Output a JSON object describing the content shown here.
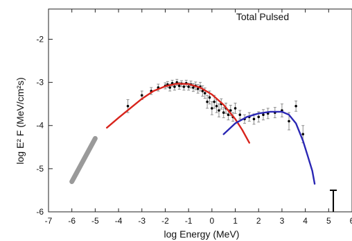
{
  "chart_data": {
    "type": "scatter",
    "title": "Total Pulsed",
    "xlabel": "log Energy (MeV)",
    "ylabel": "log E² F (MeV/cm²s)",
    "xlim": [
      -7,
      6
    ],
    "ylim": [
      -6,
      -1.3
    ],
    "x_ticks": [
      "-7",
      "-6",
      "-5",
      "-4",
      "-3",
      "-2",
      "-1",
      "0",
      "1",
      "2",
      "3",
      "4",
      "5",
      "6"
    ],
    "y_ticks": [
      {
        "v": -2,
        "label": "-2"
      },
      {
        "v": -3,
        "label": "-3"
      },
      {
        "v": -4,
        "label": "-4"
      },
      {
        "v": -5,
        "label": "-5"
      },
      {
        "v": -6,
        "label": "-6"
      }
    ],
    "grid": false,
    "series": [
      {
        "type": "band",
        "color": "#9a9a9a",
        "x": [
          -6.0,
          -5.0
        ],
        "y": [
          -5.3,
          -4.3
        ]
      },
      {
        "type": "points",
        "color": "#000000",
        "errcolor": "#8c8c8c",
        "points": [
          {
            "x": -3.6,
            "y": -3.55,
            "e": 0.15
          },
          {
            "x": -3.0,
            "y": -3.3,
            "e": 0.1
          },
          {
            "x": -2.6,
            "y": -3.2,
            "e": 0.08
          },
          {
            "x": -2.3,
            "y": -3.12,
            "e": 0.08
          },
          {
            "x": -2.0,
            "y": -3.08,
            "e": 0.07
          },
          {
            "x": -1.9,
            "y": -3.05,
            "e": 0.07
          },
          {
            "x": -1.8,
            "y": -3.12,
            "e": 0.08
          },
          {
            "x": -1.7,
            "y": -3.02,
            "e": 0.07
          },
          {
            "x": -1.6,
            "y": -3.1,
            "e": 0.08
          },
          {
            "x": -1.5,
            "y": -3.0,
            "e": 0.07
          },
          {
            "x": -1.4,
            "y": -3.08,
            "e": 0.08
          },
          {
            "x": -1.3,
            "y": -3.03,
            "e": 0.07
          },
          {
            "x": -1.2,
            "y": -3.1,
            "e": 0.08
          },
          {
            "x": -1.1,
            "y": -3.02,
            "e": 0.07
          },
          {
            "x": -1.0,
            "y": -3.1,
            "e": 0.08
          },
          {
            "x": -0.9,
            "y": -3.05,
            "e": 0.08
          },
          {
            "x": -0.8,
            "y": -3.12,
            "e": 0.09
          },
          {
            "x": -0.7,
            "y": -3.08,
            "e": 0.09
          },
          {
            "x": -0.6,
            "y": -3.15,
            "e": 0.1
          },
          {
            "x": -0.5,
            "y": -3.1,
            "e": 0.1
          },
          {
            "x": -0.4,
            "y": -3.2,
            "e": 0.12
          },
          {
            "x": -0.3,
            "y": -3.25,
            "e": 0.12
          },
          {
            "x": -0.2,
            "y": -3.45,
            "e": 0.15
          },
          {
            "x": -0.1,
            "y": -3.35,
            "e": 0.15
          },
          {
            "x": 0.0,
            "y": -3.6,
            "e": 0.15
          },
          {
            "x": 0.1,
            "y": -3.45,
            "e": 0.15
          },
          {
            "x": 0.2,
            "y": -3.55,
            "e": 0.15
          },
          {
            "x": 0.3,
            "y": -3.65,
            "e": 0.15
          },
          {
            "x": 0.4,
            "y": -3.5,
            "e": 0.12
          },
          {
            "x": 0.5,
            "y": -3.7,
            "e": 0.12
          },
          {
            "x": 0.6,
            "y": -3.6,
            "e": 0.12
          },
          {
            "x": 0.7,
            "y": -3.75,
            "e": 0.12
          },
          {
            "x": 0.8,
            "y": -3.65,
            "e": 0.12
          },
          {
            "x": 0.9,
            "y": -3.8,
            "e": 0.1
          },
          {
            "x": 1.0,
            "y": -3.6,
            "e": 0.12
          },
          {
            "x": 1.2,
            "y": -3.75,
            "e": 0.1
          },
          {
            "x": 1.4,
            "y": -3.85,
            "e": 0.1
          },
          {
            "x": 1.6,
            "y": -3.8,
            "e": 0.1
          },
          {
            "x": 1.8,
            "y": -3.85,
            "e": 0.12
          },
          {
            "x": 2.0,
            "y": -3.8,
            "e": 0.12
          },
          {
            "x": 2.2,
            "y": -3.75,
            "e": 0.12
          },
          {
            "x": 2.4,
            "y": -3.72,
            "e": 0.12
          },
          {
            "x": 2.7,
            "y": -3.7,
            "e": 0.12
          },
          {
            "x": 3.0,
            "y": -3.65,
            "e": 0.15
          },
          {
            "x": 3.3,
            "y": -3.9,
            "e": 0.2
          },
          {
            "x": 3.6,
            "y": -3.55,
            "e": 0.12
          },
          {
            "x": 3.9,
            "y": -4.2,
            "e": 0.2
          }
        ]
      },
      {
        "type": "curve",
        "color": "#d8241c",
        "x": [
          -4.5,
          -4.0,
          -3.5,
          -3.0,
          -2.5,
          -2.0,
          -1.5,
          -1.0,
          -0.5,
          0.0,
          0.5,
          1.0,
          1.3,
          1.6
        ],
        "y": [
          -4.05,
          -3.82,
          -3.6,
          -3.38,
          -3.2,
          -3.09,
          -3.03,
          -3.04,
          -3.12,
          -3.28,
          -3.52,
          -3.85,
          -4.1,
          -4.4
        ]
      },
      {
        "type": "curve",
        "color": "#2a27b4",
        "x": [
          0.5,
          1.0,
          1.5,
          2.0,
          2.5,
          3.0,
          3.3,
          3.6,
          3.9,
          4.1,
          4.3,
          4.4
        ],
        "y": [
          -4.2,
          -3.95,
          -3.8,
          -3.72,
          -3.68,
          -3.68,
          -3.75,
          -3.95,
          -4.35,
          -4.7,
          -5.05,
          -5.35
        ]
      },
      {
        "type": "upper_limit",
        "color": "#000000",
        "x": 5.2,
        "y_top": -5.5,
        "y_bottom": -6.0
      }
    ]
  }
}
